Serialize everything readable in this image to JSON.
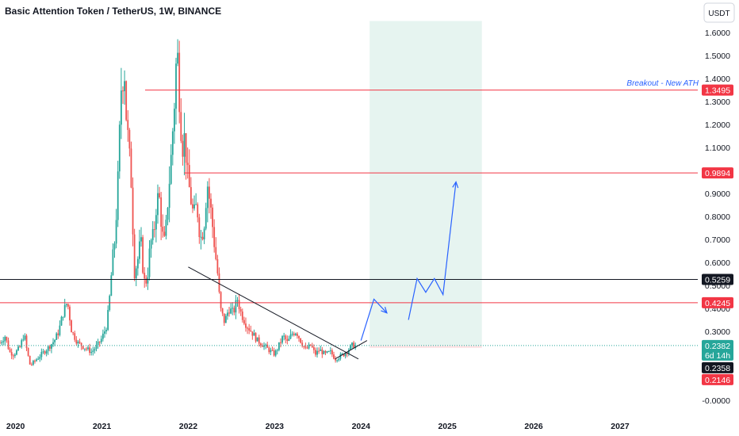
{
  "chart_data": {
    "type": "candlestick",
    "title": "Basic Attention Token / TetherUS, 1W, BINANCE",
    "currency": "USDT",
    "ylim": [
      -0.02,
      1.65
    ],
    "y_ticks": [
      "1.6000",
      "1.5000",
      "1.4000",
      "1.3000",
      "1.2000",
      "1.1000",
      "1.0000",
      "0.9000",
      "0.8000",
      "0.7000",
      "0.6000",
      "0.5000",
      "0.4000",
      "0.3000",
      "-0.0000"
    ],
    "x_ticks": [
      "2020",
      "2021",
      "2022",
      "2023",
      "2024",
      "2025",
      "2026",
      "2027"
    ],
    "x_tick_years": [
      2020,
      2021,
      2022,
      2023,
      2024,
      2025,
      2026,
      2027
    ],
    "xlim": [
      2019.82,
      2027.9
    ],
    "price_path": [
      [
        2019.82,
        0.25
      ],
      [
        2019.88,
        0.28
      ],
      [
        2019.93,
        0.21
      ],
      [
        2019.98,
        0.2
      ],
      [
        2020.05,
        0.23
      ],
      [
        2020.1,
        0.29
      ],
      [
        2020.13,
        0.22
      ],
      [
        2020.17,
        0.15
      ],
      [
        2020.22,
        0.17
      ],
      [
        2020.3,
        0.2
      ],
      [
        2020.38,
        0.23
      ],
      [
        2020.45,
        0.26
      ],
      [
        2020.5,
        0.3
      ],
      [
        2020.55,
        0.38
      ],
      [
        2020.6,
        0.43
      ],
      [
        2020.65,
        0.3
      ],
      [
        2020.72,
        0.25
      ],
      [
        2020.8,
        0.23
      ],
      [
        2020.88,
        0.21
      ],
      [
        2020.95,
        0.24
      ],
      [
        2021.0,
        0.27
      ],
      [
        2021.05,
        0.32
      ],
      [
        2021.08,
        0.4
      ],
      [
        2021.12,
        0.6
      ],
      [
        2021.15,
        0.7
      ],
      [
        2021.18,
        0.9
      ],
      [
        2021.2,
        1.1
      ],
      [
        2021.22,
        1.35
      ],
      [
        2021.26,
        1.45
      ],
      [
        2021.28,
        1.25
      ],
      [
        2021.32,
        1.05
      ],
      [
        2021.35,
        0.9
      ],
      [
        2021.37,
        0.55
      ],
      [
        2021.41,
        0.6
      ],
      [
        2021.45,
        0.7
      ],
      [
        2021.48,
        0.55
      ],
      [
        2021.5,
        0.5
      ],
      [
        2021.53,
        0.55
      ],
      [
        2021.56,
        0.68
      ],
      [
        2021.6,
        0.72
      ],
      [
        2021.63,
        0.85
      ],
      [
        2021.66,
        0.9
      ],
      [
        2021.7,
        0.72
      ],
      [
        2021.73,
        0.68
      ],
      [
        2021.76,
        0.85
      ],
      [
        2021.8,
        1.05
      ],
      [
        2021.84,
        1.3
      ],
      [
        2021.87,
        1.55
      ],
      [
        2021.9,
        1.3
      ],
      [
        2021.93,
        1.1
      ],
      [
        2021.96,
        1.15
      ],
      [
        2021.99,
        0.98
      ],
      [
        2022.02,
        0.9
      ],
      [
        2022.06,
        0.8
      ],
      [
        2022.1,
        0.85
      ],
      [
        2022.14,
        0.7
      ],
      [
        2022.18,
        0.75
      ],
      [
        2022.22,
        0.95
      ],
      [
        2022.27,
        0.8
      ],
      [
        2022.31,
        0.65
      ],
      [
        2022.34,
        0.55
      ],
      [
        2022.37,
        0.4
      ],
      [
        2022.42,
        0.34
      ],
      [
        2022.47,
        0.4
      ],
      [
        2022.52,
        0.38
      ],
      [
        2022.57,
        0.44
      ],
      [
        2022.61,
        0.38
      ],
      [
        2022.67,
        0.33
      ],
      [
        2022.73,
        0.3
      ],
      [
        2022.8,
        0.26
      ],
      [
        2022.87,
        0.24
      ],
      [
        2022.93,
        0.22
      ],
      [
        2023.0,
        0.2
      ],
      [
        2023.05,
        0.24
      ],
      [
        2023.1,
        0.28
      ],
      [
        2023.15,
        0.25
      ],
      [
        2023.2,
        0.29
      ],
      [
        2023.25,
        0.3
      ],
      [
        2023.3,
        0.26
      ],
      [
        2023.36,
        0.22
      ],
      [
        2023.42,
        0.24
      ],
      [
        2023.47,
        0.2
      ],
      [
        2023.52,
        0.22
      ],
      [
        2023.58,
        0.2
      ],
      [
        2023.65,
        0.21
      ],
      [
        2023.7,
        0.18
      ],
      [
        2023.75,
        0.19
      ],
      [
        2023.8,
        0.2
      ],
      [
        2023.85,
        0.22
      ],
      [
        2023.9,
        0.24
      ],
      [
        2023.95,
        0.2358
      ]
    ],
    "horizontal_levels": [
      {
        "value": 1.3495,
        "label": "1.3495",
        "color": "#f23645",
        "x_start": 2021.5
      },
      {
        "value": 0.9894,
        "label": "0.9894",
        "color": "#f23645",
        "x_start": 2021.95
      },
      {
        "value": 0.5259,
        "label": "0.5259",
        "color": "#131722",
        "x_start": 2019.82
      },
      {
        "value": 0.4245,
        "label": "0.4245",
        "color": "#f23645",
        "x_start": 2019.82
      }
    ],
    "last_price": {
      "value": 0.2382,
      "label": "0.2382",
      "countdown": "6d 14h",
      "color": "#26a69a"
    },
    "extra_badges": [
      {
        "value": 0.2358,
        "label": "0.2358",
        "color": "#131722"
      },
      {
        "value": 0.2146,
        "label": "0.2146",
        "color": "#f23645"
      }
    ],
    "trendline": {
      "x": [
        2022.0,
        2023.97
      ],
      "y": [
        0.58,
        0.18
      ]
    },
    "support_line": {
      "x": [
        2023.7,
        2024.07
      ],
      "y": [
        0.18,
        0.26
      ]
    },
    "target_zone": {
      "x": [
        2024.1,
        2025.4
      ],
      "y": [
        0.2382,
        1.65
      ],
      "color": "#e6f4f0"
    },
    "target_zone_stop": {
      "x": [
        2024.1,
        2025.4
      ],
      "y": [
        0.2146,
        0.2382
      ],
      "color": "#fde4e6"
    },
    "projection_path": {
      "x": [
        2024.0,
        2024.15,
        2024.3,
        2024.4,
        2024.55,
        2024.65,
        2024.75,
        2024.85,
        2024.95,
        2025.1
      ],
      "y": [
        0.26,
        0.44,
        0.38,
        null,
        0.35,
        0.53,
        0.47,
        0.53,
        0.46,
        0.95
      ]
    },
    "annotation": {
      "text": "Breakout - New ATH",
      "value": 1.38
    }
  }
}
